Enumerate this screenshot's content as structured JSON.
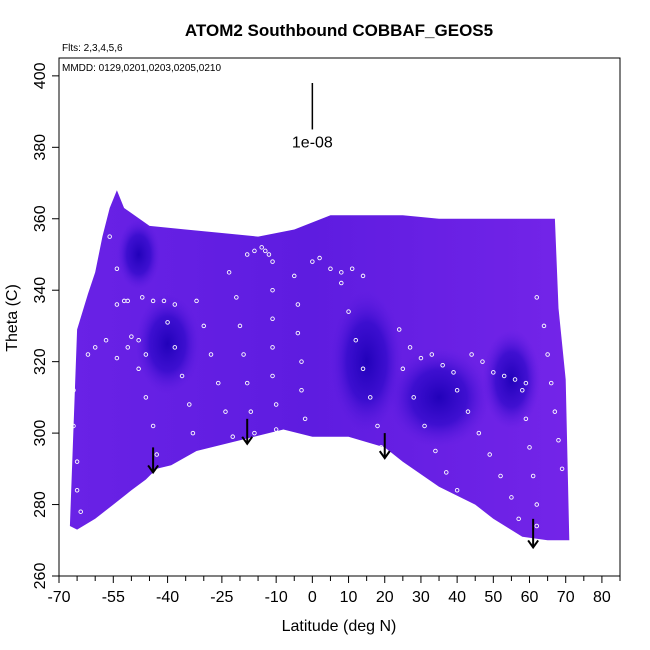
{
  "chart_data": {
    "type": "heatmap",
    "title": "ATOM2 Southbound COBBAF_GEOS5",
    "annotations": {
      "flights": "Flts: 2,3,4,5,6",
      "dates": "MMDD: 0129,0201,0203,0205,0210",
      "scale_label": "1e-08"
    },
    "xlabel": "Latitude (deg N)",
    "ylabel": "Theta (C)",
    "xlim": [
      -70,
      85
    ],
    "ylim": [
      260,
      405
    ],
    "x_ticks": [
      -70,
      -55,
      -40,
      -25,
      -10,
      0,
      10,
      20,
      30,
      40,
      50,
      60,
      70,
      80
    ],
    "x_minor_ticks": [
      -65,
      -60,
      -50,
      -45,
      -35,
      -30,
      -20,
      -15,
      -5,
      5,
      15,
      25,
      35,
      45,
      55,
      65,
      75,
      85
    ],
    "y_ticks": [
      260,
      280,
      300,
      320,
      340,
      360,
      380,
      400
    ],
    "scale_bar": {
      "x": 0,
      "from": 385,
      "to": 398
    },
    "upper_boundary": [
      [
        -65,
        329
      ],
      [
        -62,
        339
      ],
      [
        -60,
        345
      ],
      [
        -58,
        355
      ],
      [
        -56,
        363
      ],
      [
        -54,
        368
      ],
      [
        -52,
        363
      ],
      [
        -45,
        358
      ],
      [
        -35,
        357
      ],
      [
        -25,
        356
      ],
      [
        -15,
        355
      ],
      [
        -5,
        357
      ],
      [
        5,
        361
      ],
      [
        15,
        361
      ],
      [
        25,
        361
      ],
      [
        35,
        360
      ],
      [
        45,
        360
      ],
      [
        55,
        360
      ],
      [
        62,
        360
      ],
      [
        67,
        360
      ],
      [
        68,
        335
      ],
      [
        70,
        315
      ]
    ],
    "lower_boundary": [
      [
        71,
        270
      ],
      [
        65,
        270
      ],
      [
        58,
        271
      ],
      [
        50,
        276
      ],
      [
        45,
        280
      ],
      [
        35,
        285
      ],
      [
        25,
        292
      ],
      [
        20,
        296
      ],
      [
        10,
        299
      ],
      [
        0,
        299
      ],
      [
        -8,
        301
      ],
      [
        -20,
        298
      ],
      [
        -32,
        295
      ],
      [
        -39,
        291
      ],
      [
        -43,
        290
      ],
      [
        -46,
        287
      ],
      [
        -50,
        284
      ],
      [
        -55,
        280
      ],
      [
        -60,
        276
      ],
      [
        -65,
        273
      ],
      [
        -67,
        274
      ]
    ],
    "low_value_regions": [
      {
        "center": [
          -40,
          325
        ],
        "radius": [
          9,
          14
        ]
      },
      {
        "center": [
          15,
          320
        ],
        "radius": [
          10,
          20
        ]
      },
      {
        "center": [
          35,
          310
        ],
        "radius": [
          14,
          14
        ]
      },
      {
        "center": [
          55,
          315
        ],
        "radius": [
          8,
          14
        ]
      },
      {
        "center": [
          -48,
          350
        ],
        "radius": [
          6,
          10
        ]
      }
    ],
    "arrows": [
      {
        "x": -44,
        "from": 296,
        "to": 289
      },
      {
        "x": -18,
        "from": 304,
        "to": 297
      },
      {
        "x": 20,
        "from": 300,
        "to": 293
      },
      {
        "x": 61,
        "from": 276,
        "to": 268
      }
    ],
    "flight_tracks": [
      {
        "name": "track-1",
        "points": [
          [
            -67,
            330
          ],
          [
            -67,
            322
          ],
          [
            -66,
            312
          ],
          [
            -66,
            302
          ],
          [
            -65,
            292
          ],
          [
            -65,
            284
          ],
          [
            -64,
            278
          ]
        ]
      },
      {
        "name": "track-2",
        "points": [
          [
            -62,
            322
          ],
          [
            -60,
            324
          ],
          [
            -57,
            326
          ],
          [
            -54,
            321
          ],
          [
            -51,
            324
          ],
          [
            -48,
            326
          ],
          [
            -46,
            322
          ]
        ]
      },
      {
        "name": "track-3",
        "points": [
          [
            -54,
            336
          ],
          [
            -51,
            337
          ],
          [
            -47,
            338
          ],
          [
            -44,
            337
          ],
          [
            -41,
            337
          ],
          [
            -38,
            336
          ]
        ]
      },
      {
        "name": "track-4",
        "points": [
          [
            -56,
            355
          ],
          [
            -54,
            346
          ],
          [
            -52,
            337
          ],
          [
            -50,
            327
          ],
          [
            -48,
            318
          ],
          [
            -46,
            310
          ],
          [
            -44,
            302
          ],
          [
            -43,
            294
          ]
        ]
      },
      {
        "name": "track-5",
        "points": [
          [
            -40,
            331
          ],
          [
            -38,
            324
          ],
          [
            -36,
            316
          ],
          [
            -34,
            308
          ],
          [
            -33,
            300
          ],
          [
            -31,
            292
          ]
        ]
      },
      {
        "name": "track-6",
        "points": [
          [
            -32,
            337
          ],
          [
            -30,
            330
          ],
          [
            -28,
            322
          ],
          [
            -26,
            314
          ],
          [
            -24,
            306
          ],
          [
            -22,
            299
          ]
        ]
      },
      {
        "name": "track-7",
        "points": [
          [
            -23,
            345
          ],
          [
            -21,
            338
          ],
          [
            -20,
            330
          ],
          [
            -19,
            322
          ],
          [
            -18,
            314
          ],
          [
            -17,
            306
          ],
          [
            -16,
            300
          ]
        ]
      },
      {
        "name": "track-8",
        "points": [
          [
            -18,
            350
          ],
          [
            -16,
            351
          ],
          [
            -14,
            352
          ],
          [
            -13,
            351
          ],
          [
            -12,
            350
          ]
        ]
      },
      {
        "name": "track-9",
        "points": [
          [
            -11,
            348
          ],
          [
            -11,
            340
          ],
          [
            -11,
            332
          ],
          [
            -11,
            324
          ],
          [
            -11,
            316
          ],
          [
            -10,
            308
          ],
          [
            -10,
            301
          ]
        ]
      },
      {
        "name": "track-10",
        "points": [
          [
            -5,
            344
          ],
          [
            -4,
            336
          ],
          [
            -4,
            328
          ],
          [
            -3,
            320
          ],
          [
            -3,
            312
          ],
          [
            -2,
            304
          ]
        ]
      },
      {
        "name": "track-11",
        "points": [
          [
            0,
            348
          ],
          [
            2,
            349
          ],
          [
            5,
            346
          ],
          [
            8,
            345
          ],
          [
            11,
            346
          ],
          [
            14,
            344
          ]
        ]
      },
      {
        "name": "track-12",
        "points": [
          [
            8,
            342
          ],
          [
            10,
            334
          ],
          [
            12,
            326
          ],
          [
            14,
            318
          ],
          [
            16,
            310
          ],
          [
            18,
            302
          ],
          [
            19,
            296
          ]
        ]
      },
      {
        "name": "track-13",
        "points": [
          [
            24,
            329
          ],
          [
            27,
            324
          ],
          [
            30,
            321
          ],
          [
            33,
            322
          ],
          [
            36,
            319
          ],
          [
            39,
            317
          ]
        ]
      },
      {
        "name": "track-14",
        "points": [
          [
            25,
            318
          ],
          [
            28,
            310
          ],
          [
            31,
            302
          ],
          [
            34,
            295
          ],
          [
            37,
            289
          ],
          [
            40,
            284
          ]
        ]
      },
      {
        "name": "track-15",
        "points": [
          [
            40,
            312
          ],
          [
            43,
            306
          ],
          [
            46,
            300
          ],
          [
            49,
            294
          ],
          [
            52,
            288
          ],
          [
            55,
            282
          ],
          [
            57,
            276
          ]
        ]
      },
      {
        "name": "track-16",
        "points": [
          [
            44,
            322
          ],
          [
            47,
            320
          ],
          [
            50,
            317
          ],
          [
            53,
            316
          ],
          [
            56,
            315
          ],
          [
            59,
            314
          ]
        ]
      },
      {
        "name": "track-17",
        "points": [
          [
            58,
            312
          ],
          [
            59,
            304
          ],
          [
            60,
            296
          ],
          [
            61,
            288
          ],
          [
            62,
            280
          ],
          [
            62,
            274
          ]
        ]
      },
      {
        "name": "track-18",
        "points": [
          [
            62,
            338
          ],
          [
            64,
            330
          ],
          [
            65,
            322
          ],
          [
            66,
            314
          ],
          [
            67,
            306
          ],
          [
            68,
            298
          ],
          [
            69,
            290
          ]
        ]
      }
    ]
  }
}
